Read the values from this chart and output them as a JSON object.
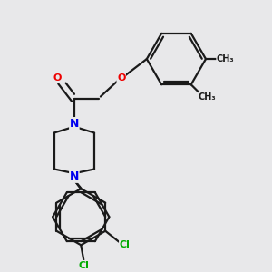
{
  "background_color": "#e8e8ea",
  "bond_color": "#1a1a1a",
  "N_color": "#0000ee",
  "O_color": "#ee0000",
  "Cl_color": "#00aa00",
  "bond_lw": 1.6,
  "figsize": [
    3.0,
    3.0
  ],
  "dpi": 100,
  "xlim": [
    0,
    10
  ],
  "ylim": [
    0,
    10
  ]
}
